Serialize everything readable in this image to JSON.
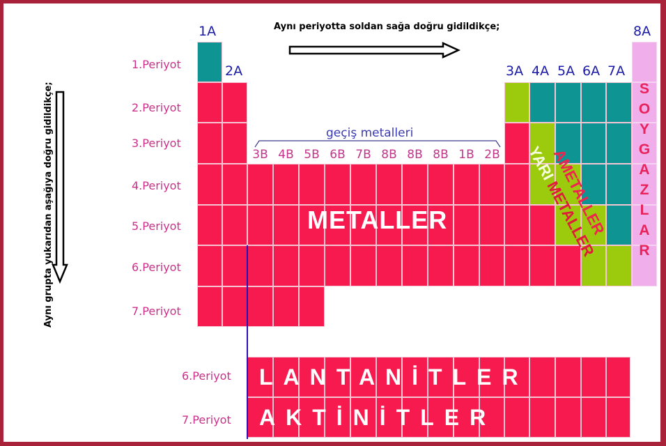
{
  "colors": {
    "metal": "#f61a4f",
    "nonmetal": "#0f9494",
    "metalloid": "#9ccb0e",
    "noble_gas": "#f0aeea",
    "frame": "#a8223a",
    "group_label": "#1a1aa6",
    "period_label": "#cc2f8a",
    "grid_line": "#f6c6d4"
  },
  "annotations": {
    "horizontal_trend": "Aynı periyotta soldan sağa doğru gidildikçe;",
    "vertical_trend": "Aynı grupta yukarıdan aşağıya doğru gidildikçe;"
  },
  "group_labels": {
    "g1": "1A",
    "g2": "2A",
    "g13": "3A",
    "g14": "4A",
    "g15": "5A",
    "g16": "6A",
    "g17": "7A",
    "g18": "8A"
  },
  "transition": {
    "title": "geçiş metalleri",
    "labels": [
      "3B",
      "4B",
      "5B",
      "6B",
      "7B",
      "8B",
      "8B",
      "8B",
      "1B",
      "2B"
    ]
  },
  "periods": [
    "1.Periyot",
    "2.Periyot",
    "3.Periyot",
    "4.Periyot",
    "5.Periyot",
    "6.Periyot",
    "7.Periyot"
  ],
  "region_labels": {
    "metals": "METALLER",
    "nonmetals": "AMETALLER",
    "metalloids_prefix": "YARI",
    "metalloids_suffix": "METALLER",
    "noble_gases": "SOYGAZLAR"
  },
  "f_block": {
    "rows": [
      {
        "period": "6.Periyot",
        "name": "LANTANİTLER",
        "letters": [
          "L",
          "A",
          "N",
          "T",
          "A",
          "N",
          "İ",
          "T",
          "L",
          "E",
          "R"
        ]
      },
      {
        "period": "7.Periyot",
        "name": "AKTİNİTLER",
        "letters": [
          "A",
          "K",
          "T",
          "İ",
          "N",
          "İ",
          "T",
          "L",
          "E",
          "R"
        ]
      }
    ]
  },
  "table_grid": {
    "legend": {
      "r": "metal",
      "t": "nonmetal",
      "g": "metalloid",
      "p": "noble_gas",
      ".": "empty"
    },
    "rows": [
      "t................p",
      "rr..........gttttp",
      "rr..........rgtttp",
      "rrrrrrrrrrrrrggttp",
      "rrrrrrrrrrrrrrggtp",
      "rrrrrrrrrrrrrrrggp",
      "rrrrr............."
    ]
  }
}
